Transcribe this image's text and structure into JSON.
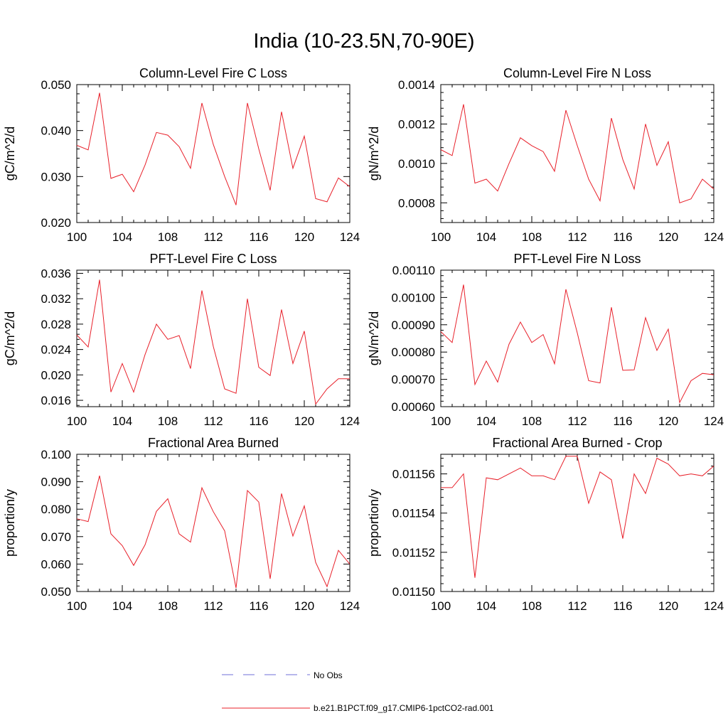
{
  "page": {
    "title": "India (10-23.5N,70-90E)"
  },
  "legend": {
    "items": [
      {
        "label": "No Obs",
        "color": "#6f6fd8",
        "dash": true
      },
      {
        "label": "b.e21.B1PCT.f09_g17.CMIP6-1pctCO2-rad.001",
        "color": "#e8202a",
        "dash": false
      }
    ]
  },
  "chart_data": [
    {
      "type": "line",
      "title": "Column-Level Fire C Loss",
      "ylabel": "gC/m^2/d",
      "xlim": [
        100,
        124
      ],
      "ylim": [
        0.02,
        0.05
      ],
      "xticks": [
        100,
        104,
        108,
        112,
        116,
        120,
        124
      ],
      "yticks": [
        0.02,
        0.03,
        0.04,
        0.05
      ],
      "ytick_labels": [
        "0.020",
        "0.030",
        "0.040",
        "0.050"
      ],
      "x": [
        100,
        101,
        102,
        103,
        104,
        105,
        106,
        107,
        108,
        109,
        110,
        111,
        112,
        113,
        114,
        115,
        116,
        117,
        118,
        119,
        120,
        121,
        122,
        123,
        124
      ],
      "series": [
        {
          "name": "b.e21.B1PCT.f09_g17.CMIP6-1pctCO2-rad.001",
          "color": "#e8202a",
          "values": [
            0.0368,
            0.0358,
            0.0482,
            0.0296,
            0.0305,
            0.0267,
            0.0325,
            0.0396,
            0.039,
            0.0365,
            0.0318,
            0.046,
            0.037,
            0.03,
            0.0238,
            0.046,
            0.036,
            0.027,
            0.0441,
            0.0318,
            0.0388,
            0.0252,
            0.0245,
            0.0297,
            0.0278
          ]
        }
      ]
    },
    {
      "type": "line",
      "title": "Column-Level Fire N Loss",
      "ylabel": "gN/m^2/d",
      "xlim": [
        100,
        124
      ],
      "ylim": [
        0.0007,
        0.0014
      ],
      "xticks": [
        100,
        104,
        108,
        112,
        116,
        120,
        124
      ],
      "yticks": [
        0.0008,
        0.001,
        0.0012,
        0.0014
      ],
      "ytick_labels": [
        "0.0008",
        "0.0010",
        "0.0012",
        "0.0014"
      ],
      "x": [
        100,
        101,
        102,
        103,
        104,
        105,
        106,
        107,
        108,
        109,
        110,
        111,
        112,
        113,
        114,
        115,
        116,
        117,
        118,
        119,
        120,
        121,
        122,
        123,
        124
      ],
      "series": [
        {
          "name": "b.e21.B1PCT.f09_g17.CMIP6-1pctCO2-rad.001",
          "color": "#e8202a",
          "values": [
            0.00107,
            0.00104,
            0.0013,
            0.0009,
            0.00092,
            0.00086,
            0.001,
            0.00113,
            0.00109,
            0.00106,
            0.00096,
            0.00127,
            0.00109,
            0.00092,
            0.00081,
            0.00123,
            0.00102,
            0.00087,
            0.0012,
            0.00099,
            0.00111,
            0.0008,
            0.00082,
            0.00092,
            0.00087
          ]
        }
      ]
    },
    {
      "type": "line",
      "title": "PFT-Level Fire C Loss",
      "ylabel": "gC/m^2/d",
      "xlim": [
        100,
        124
      ],
      "ylim": [
        0.015,
        0.0365
      ],
      "xticks": [
        100,
        104,
        108,
        112,
        116,
        120,
        124
      ],
      "yticks": [
        0.016,
        0.02,
        0.024,
        0.028,
        0.032,
        0.036
      ],
      "ytick_labels": [
        "0.016",
        "0.020",
        "0.024",
        "0.028",
        "0.032",
        "0.036"
      ],
      "x": [
        100,
        101,
        102,
        103,
        104,
        105,
        106,
        107,
        108,
        109,
        110,
        111,
        112,
        113,
        114,
        115,
        116,
        117,
        118,
        119,
        120,
        121,
        122,
        123,
        124
      ],
      "series": [
        {
          "name": "b.e21.B1PCT.f09_g17.CMIP6-1pctCO2-rad.001",
          "color": "#e8202a",
          "values": [
            0.0263,
            0.0244,
            0.035,
            0.0173,
            0.0218,
            0.0173,
            0.0232,
            0.028,
            0.0256,
            0.0262,
            0.021,
            0.0333,
            0.0245,
            0.0178,
            0.0171,
            0.032,
            0.0212,
            0.0199,
            0.0303,
            0.0218,
            0.0269,
            0.0154,
            0.0178,
            0.0194,
            0.0194
          ]
        }
      ]
    },
    {
      "type": "line",
      "title": "PFT-Level Fire N Loss",
      "ylabel": "gN/m^2/d",
      "xlim": [
        100,
        124
      ],
      "ylim": [
        0.0006,
        0.0011
      ],
      "xticks": [
        100,
        104,
        108,
        112,
        116,
        120,
        124
      ],
      "yticks": [
        0.0006,
        0.0007,
        0.0008,
        0.0009,
        0.001,
        0.0011
      ],
      "ytick_labels": [
        "0.00060",
        "0.00070",
        "0.00080",
        "0.00090",
        "0.00100",
        "0.00110"
      ],
      "x": [
        100,
        101,
        102,
        103,
        104,
        105,
        106,
        107,
        108,
        109,
        110,
        111,
        112,
        113,
        114,
        115,
        116,
        117,
        118,
        119,
        120,
        121,
        122,
        123,
        124
      ],
      "series": [
        {
          "name": "b.e21.B1PCT.f09_g17.CMIP6-1pctCO2-rad.001",
          "color": "#e8202a",
          "values": [
            0.000875,
            0.000835,
            0.001047,
            0.000681,
            0.000767,
            0.00069,
            0.000829,
            0.00091,
            0.000835,
            0.000864,
            0.000757,
            0.00103,
            0.00087,
            0.000695,
            0.000687,
            0.000964,
            0.000733,
            0.000735,
            0.000926,
            0.000806,
            0.000884,
            0.000615,
            0.000695,
            0.000722,
            0.000717
          ]
        }
      ]
    },
    {
      "type": "line",
      "title": "Fractional Area Burned",
      "ylabel": "proportion/y",
      "xlim": [
        100,
        124
      ],
      "ylim": [
        0.05,
        0.1
      ],
      "xticks": [
        100,
        104,
        108,
        112,
        116,
        120,
        124
      ],
      "yticks": [
        0.05,
        0.06,
        0.07,
        0.08,
        0.09,
        0.1
      ],
      "ytick_labels": [
        "0.050",
        "0.060",
        "0.070",
        "0.080",
        "0.090",
        "0.100"
      ],
      "x": [
        100,
        101,
        102,
        103,
        104,
        105,
        106,
        107,
        108,
        109,
        110,
        111,
        112,
        113,
        114,
        115,
        116,
        117,
        118,
        119,
        120,
        121,
        122,
        123,
        124
      ],
      "series": [
        {
          "name": "b.e21.B1PCT.f09_g17.CMIP6-1pctCO2-rad.001",
          "color": "#e8202a",
          "values": [
            0.0765,
            0.0755,
            0.0922,
            0.071,
            0.0667,
            0.0595,
            0.067,
            0.0792,
            0.0838,
            0.071,
            0.068,
            0.0878,
            0.0791,
            0.0721,
            0.0513,
            0.0868,
            0.0826,
            0.0546,
            0.0857,
            0.0702,
            0.0812,
            0.0606,
            0.0518,
            0.065,
            0.06
          ]
        }
      ]
    },
    {
      "type": "line",
      "title": "Fractional Area Burned - Crop",
      "ylabel": "proportion/y",
      "xlim": [
        100,
        124
      ],
      "ylim": [
        0.0115,
        0.01157
      ],
      "xticks": [
        100,
        104,
        108,
        112,
        116,
        120,
        124
      ],
      "yticks": [
        0.0115,
        0.01152,
        0.01154,
        0.01156
      ],
      "ytick_labels": [
        "0.01150",
        "0.01152",
        "0.01154",
        "0.01156"
      ],
      "x": [
        100,
        101,
        102,
        103,
        104,
        105,
        106,
        107,
        108,
        109,
        110,
        111,
        112,
        113,
        114,
        115,
        116,
        117,
        118,
        119,
        120,
        121,
        122,
        123,
        124
      ],
      "series": [
        {
          "name": "b.e21.B1PCT.f09_g17.CMIP6-1pctCO2-rad.001",
          "color": "#e8202a",
          "values": [
            0.011553,
            0.011553,
            0.01156,
            0.011507,
            0.011558,
            0.011557,
            0.01156,
            0.011563,
            0.011559,
            0.011559,
            0.011557,
            0.011569,
            0.011569,
            0.011545,
            0.011561,
            0.011557,
            0.011527,
            0.01156,
            0.01155,
            0.011568,
            0.011565,
            0.011559,
            0.01156,
            0.011559,
            0.011564
          ]
        }
      ]
    }
  ]
}
